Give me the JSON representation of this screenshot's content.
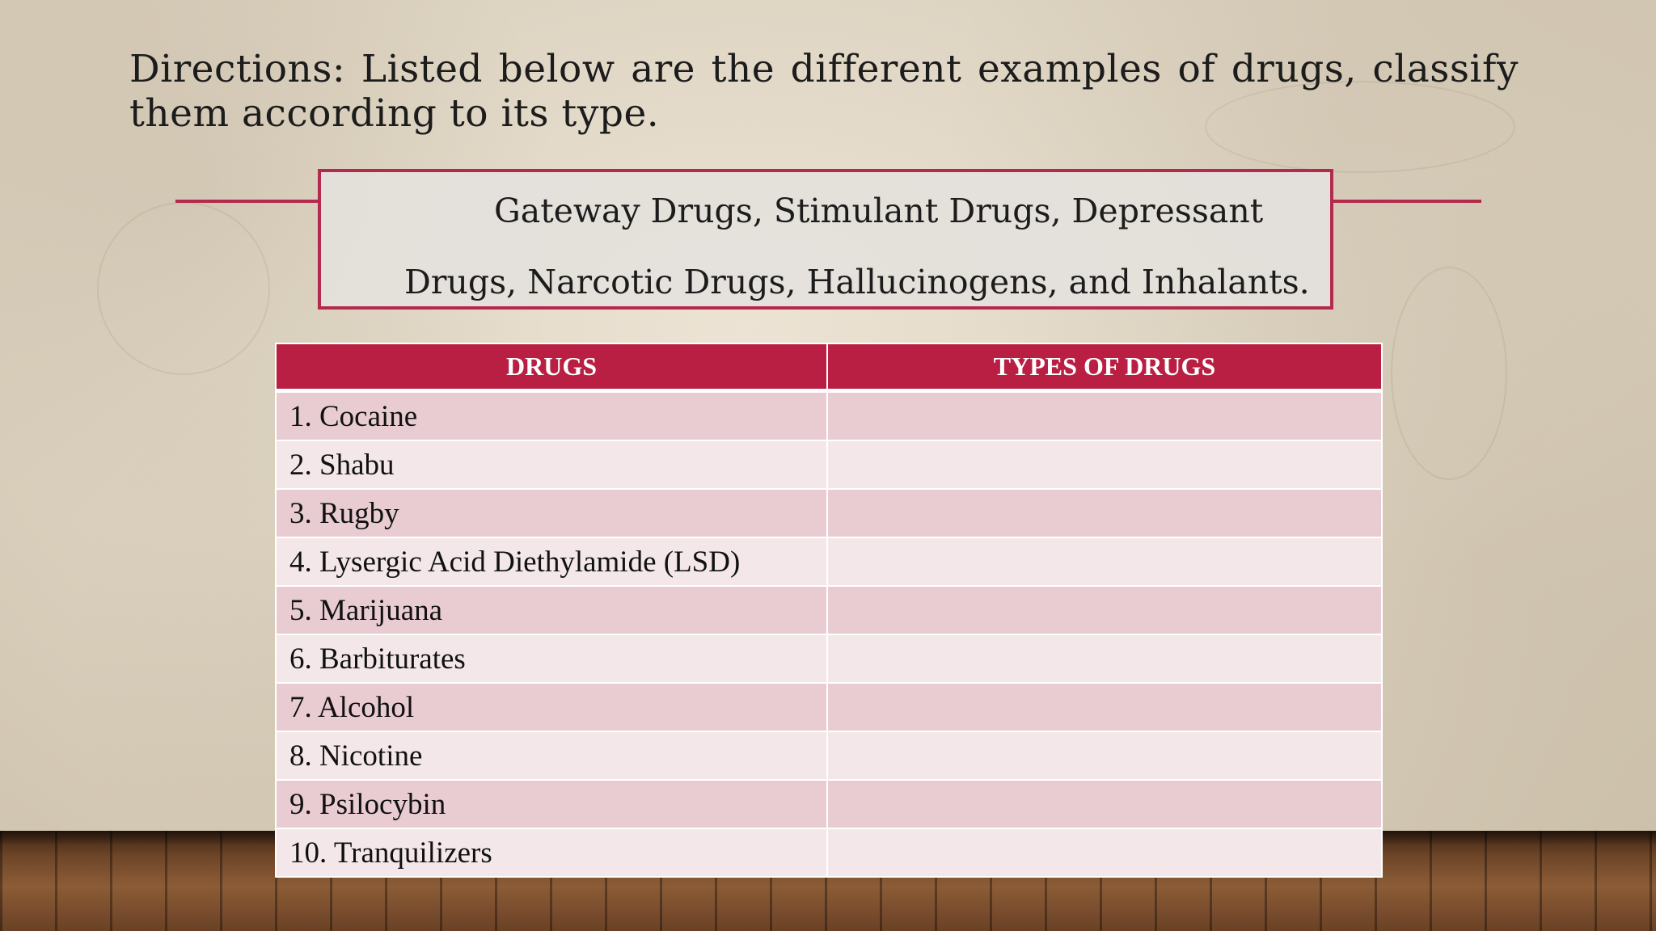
{
  "directions": "Directions: Listed below are the different examples of drugs, classify them according to its type.",
  "types_box": {
    "line1": "Gateway Drugs, Stimulant Drugs, Depressant",
    "line2": "Drugs, Narcotic Drugs, Hallucinogens, and Inhalants."
  },
  "table": {
    "headers": [
      "DRUGS",
      "TYPES OF DRUGS"
    ],
    "rows": [
      {
        "drug": "1. Cocaine",
        "type": ""
      },
      {
        "drug": "2. Shabu",
        "type": ""
      },
      {
        "drug": "3. Rugby",
        "type": ""
      },
      {
        "drug": "4. Lysergic Acid Diethylamide (LSD)",
        "type": ""
      },
      {
        "drug": "5. Marijuana",
        "type": ""
      },
      {
        "drug": "6. Barbiturates",
        "type": ""
      },
      {
        "drug": "7. Alcohol",
        "type": ""
      },
      {
        "drug": "8. Nicotine",
        "type": ""
      },
      {
        "drug": "9. Psilocybin",
        "type": ""
      },
      {
        "drug": "10. Tranquilizers",
        "type": ""
      }
    ]
  },
  "colors": {
    "accent": "#b91f42",
    "row_dark": "#e8ccd2",
    "row_light": "#f3e7e9"
  }
}
